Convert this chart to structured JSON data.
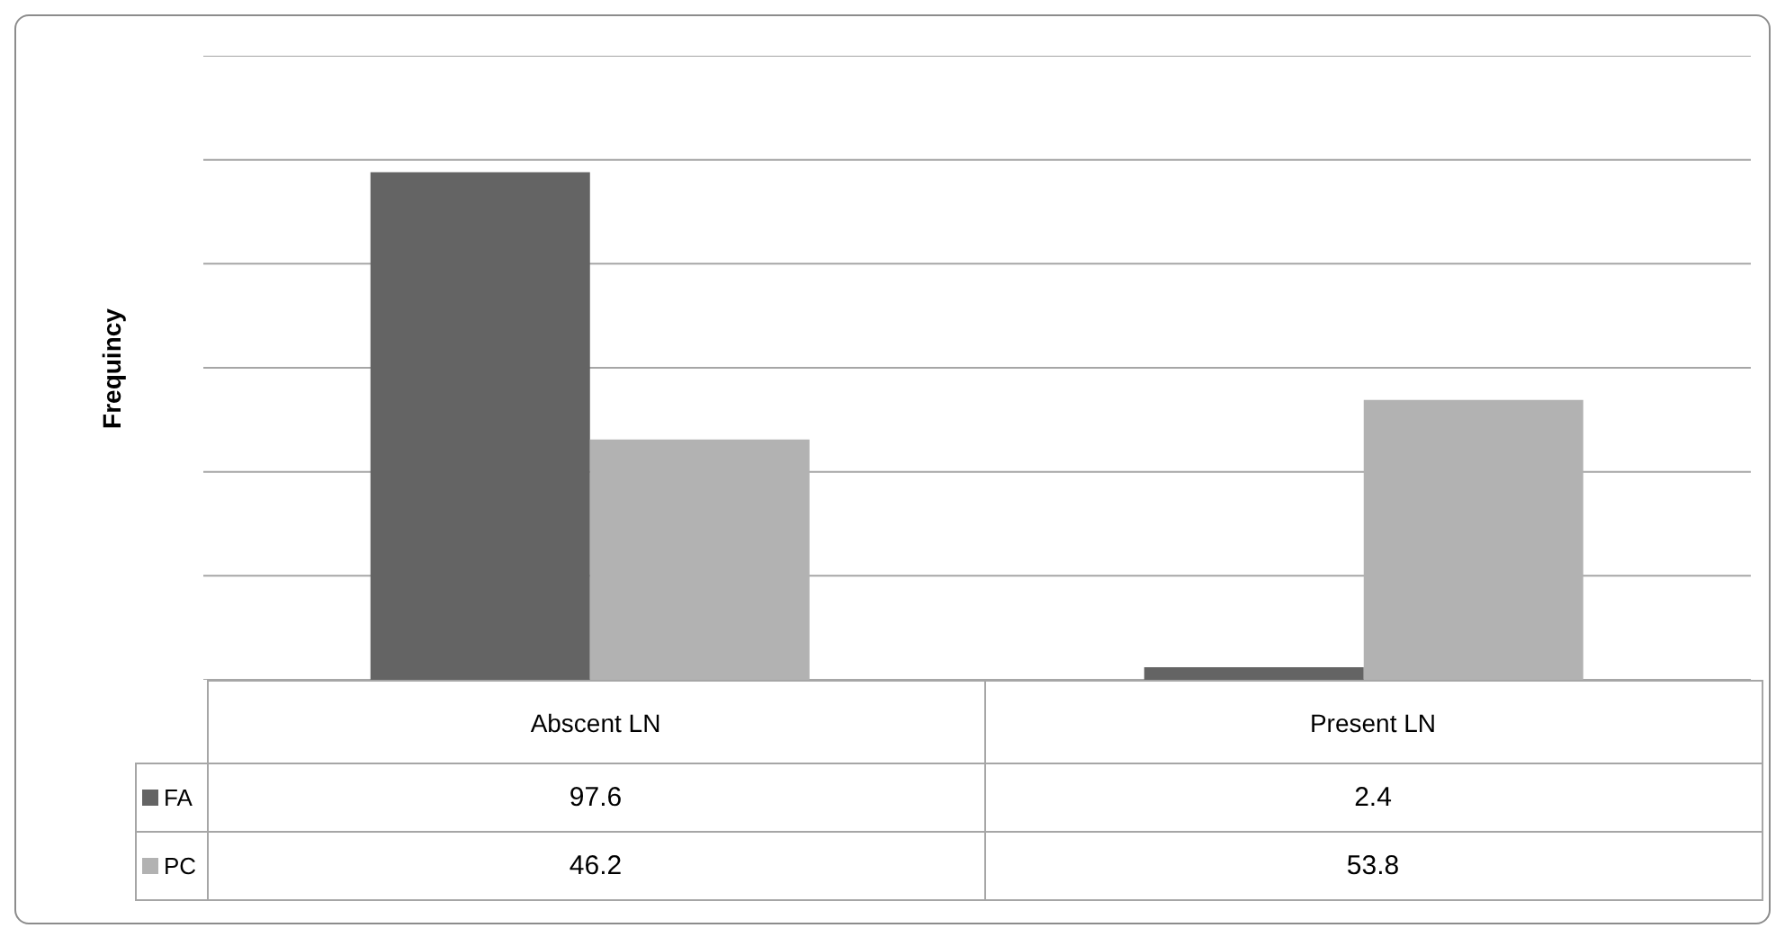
{
  "chart_data": {
    "type": "bar",
    "ylabel": "Frequincy",
    "categories": [
      "Abscent LN",
      "Present LN"
    ],
    "series": [
      {
        "name": "FA",
        "color": "#646464",
        "values": [
          97.6,
          2.4
        ]
      },
      {
        "name": "PC",
        "color": "#b2b2b2",
        "values": [
          46.2,
          53.8
        ]
      }
    ],
    "ylim": [
      0,
      120
    ],
    "yticks": [
      {
        "value": 0,
        "label": null
      },
      {
        "value": 20,
        "label": null
      },
      {
        "value": 40,
        "label": null
      },
      {
        "value": 60,
        "label": null
      },
      {
        "value": 80,
        "label": null
      },
      {
        "value": 100,
        "label": null
      },
      {
        "value": 120,
        "label": null
      }
    ],
    "tick_labels": "x",
    "grid": "y",
    "legend": "bottom",
    "data_labels": true
  }
}
